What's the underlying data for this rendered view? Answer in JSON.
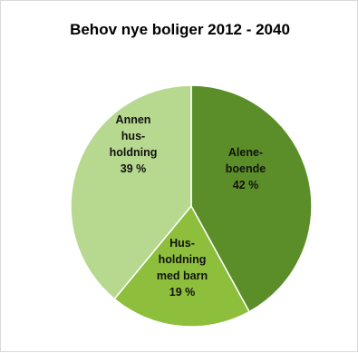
{
  "chart_data": {
    "type": "pie",
    "title": "Behov nye boliger 2012 - 2040",
    "slices": [
      {
        "label_lines": [
          "Alene-",
          "boende",
          "42 %"
        ],
        "value": 42,
        "color": "#5b8e28"
      },
      {
        "label_lines": [
          "Hus-",
          "holdning",
          "med barn",
          "19 %"
        ],
        "value": 19,
        "color": "#8dbf3c"
      },
      {
        "label_lines": [
          "Annen",
          "hus-",
          "holdning",
          "39 %"
        ],
        "value": 39,
        "color": "#b6d98f"
      }
    ],
    "legend": "none",
    "grid": false
  }
}
